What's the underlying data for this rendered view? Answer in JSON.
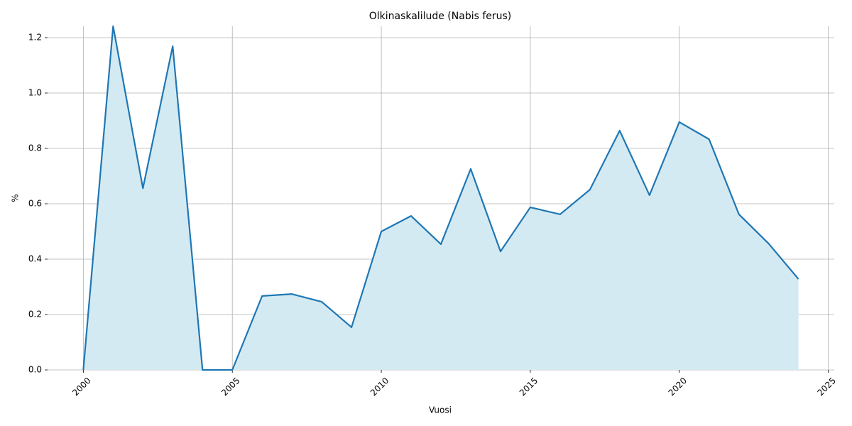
{
  "chart_data": {
    "type": "line",
    "title": "Olkinaskalilude (Nabis ferus)",
    "x_label": "Vuosi",
    "y_label": "%",
    "x": [
      2000,
      2001,
      2002,
      2003,
      2004,
      2005,
      2006,
      2007,
      2008,
      2009,
      2010,
      2011,
      2012,
      2013,
      2014,
      2015,
      2016,
      2017,
      2018,
      2019,
      2020,
      2021,
      2022,
      2023,
      2024
    ],
    "values": [
      0,
      1.241,
      0.656,
      1.169,
      0,
      0,
      0.267,
      0.274,
      0.246,
      0.154,
      0.5,
      0.556,
      0.454,
      0.726,
      0.428,
      0.587,
      0.562,
      0.651,
      0.864,
      0.631,
      0.895,
      0.833,
      0.562,
      0.456,
      0.328
    ],
    "color": "#1f77b4",
    "fill_color": "#d4eaf2",
    "xlim": [
      1998.8,
      2025.2
    ],
    "xticks": [
      2000,
      2005,
      2010,
      2015,
      2020,
      2025
    ],
    "ylim": [
      0,
      1.241
    ],
    "yticks": [
      {
        "value": 0,
        "label": "0.0"
      },
      {
        "value": 0.2,
        "label": "0.2"
      },
      {
        "value": 0.4,
        "label": "0.4"
      },
      {
        "value": 0.6,
        "label": "0.6"
      },
      {
        "value": 0.8,
        "label": "0.8"
      },
      {
        "value": 1,
        "label": "1.0"
      },
      {
        "value": 1.2,
        "label": "1.2"
      }
    ],
    "grid": true
  }
}
